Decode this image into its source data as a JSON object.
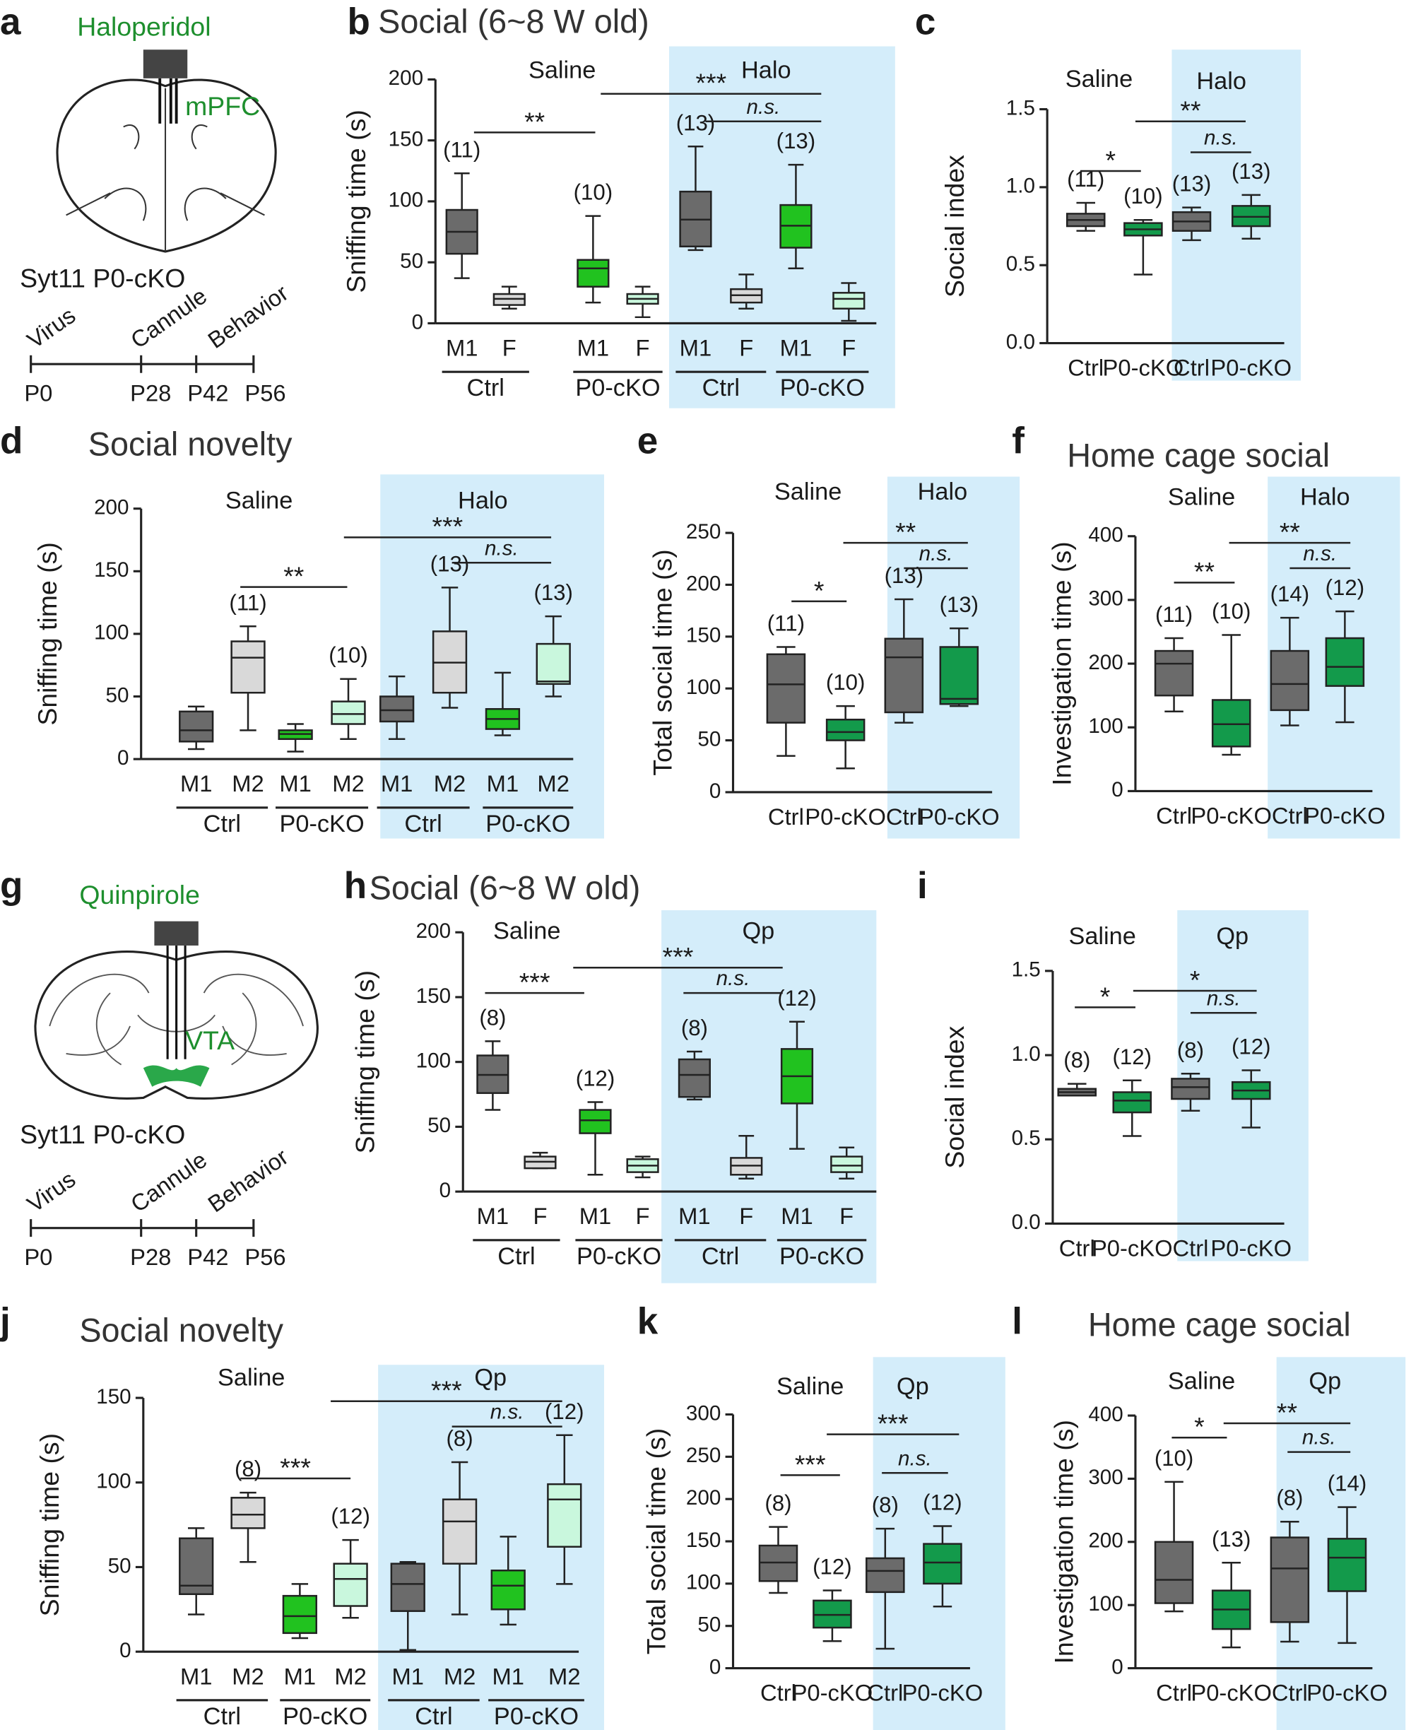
{
  "diagrams": [
    {
      "panel": "a",
      "drug": "Haloperidol",
      "region": "mPFC",
      "genotype": "Syt11 P0-cKO",
      "steps": [
        "Virus",
        "Cannule",
        "Behavior"
      ],
      "days": [
        "P0",
        "P28",
        "P42",
        "P56"
      ]
    },
    {
      "panel": "g",
      "drug": "Quinpirole",
      "region": "VTA",
      "genotype": "Syt11 P0-cKO",
      "steps": [
        "Virus",
        "Cannule",
        "Behavior"
      ],
      "days": [
        "P0",
        "P28",
        "P42",
        "P56"
      ]
    }
  ],
  "chart_data": [
    {
      "type": "box",
      "panel": "b",
      "title": "Social (6~8 W old)",
      "y_label": "Sniffing time (s)",
      "ylim": [
        0,
        200
      ],
      "yticks": [
        0,
        50,
        100,
        150,
        200
      ],
      "conditions": [
        "Saline",
        "Halo"
      ],
      "categories": [
        "M1",
        "F",
        "M1",
        "F",
        "M1",
        "F",
        "M1",
        "F"
      ],
      "groups": [
        "Ctrl",
        "P0-cKO",
        "Ctrl",
        "P0-cKO"
      ],
      "n_labels": [
        "(11)",
        null,
        "(10)",
        null,
        "(13)",
        null,
        "(13)",
        null
      ],
      "significance": [
        "**",
        "***",
        "n.s."
      ],
      "boxes": [
        {
          "min": 37,
          "q1": 57,
          "median": 75,
          "q3": 93,
          "max": 123,
          "color": "#6b6b6b"
        },
        {
          "min": 12,
          "q1": 15,
          "median": 20,
          "q3": 24,
          "max": 30,
          "color": "#d9d9d9"
        },
        {
          "min": 17,
          "q1": 30,
          "median": 45,
          "q3": 52,
          "max": 88,
          "color": "#21c21f"
        },
        {
          "min": 5,
          "q1": 16,
          "median": 20,
          "q3": 24,
          "max": 30,
          "color": "#c9f7dd"
        },
        {
          "min": 60,
          "q1": 63,
          "median": 85,
          "q3": 108,
          "max": 145,
          "color": "#6b6b6b"
        },
        {
          "min": 12,
          "q1": 17,
          "median": 23,
          "q3": 28,
          "max": 40,
          "color": "#d9d9d9"
        },
        {
          "min": 45,
          "q1": 62,
          "median": 80,
          "q3": 97,
          "max": 130,
          "color": "#21c21f"
        },
        {
          "min": 2,
          "q1": 12,
          "median": 20,
          "q3": 25,
          "max": 33,
          "color": "#c9f7dd"
        }
      ]
    },
    {
      "type": "box",
      "panel": "c",
      "y_label": "Social index",
      "ylim": [
        0,
        1.5
      ],
      "yticks": [
        {
          "value": 0,
          "label": "0.0"
        },
        0.5,
        {
          "value": 1,
          "label": "1.0"
        },
        1.5
      ],
      "conditions": [
        "Saline",
        "Halo"
      ],
      "categories": [
        "Ctrl",
        "P0-cKO",
        "Ctrl",
        "P0-cKO"
      ],
      "n_labels": [
        "(11)",
        "(10)",
        "(13)",
        "(13)"
      ],
      "significance": [
        "*",
        "**",
        "n.s."
      ],
      "boxes": [
        {
          "min": 0.72,
          "q1": 0.75,
          "median": 0.79,
          "q3": 0.83,
          "max": 0.9,
          "color": "#6b6b6b"
        },
        {
          "min": 0.44,
          "q1": 0.69,
          "median": 0.73,
          "q3": 0.77,
          "max": 0.79,
          "color": "#139a4b"
        },
        {
          "min": 0.66,
          "q1": 0.72,
          "median": 0.78,
          "q3": 0.84,
          "max": 0.87,
          "color": "#6b6b6b"
        },
        {
          "min": 0.67,
          "q1": 0.75,
          "median": 0.81,
          "q3": 0.88,
          "max": 0.95,
          "color": "#139a4b"
        }
      ]
    },
    {
      "type": "box",
      "panel": "d",
      "title": "Social novelty",
      "y_label": "Sniffing time (s)",
      "ylim": [
        0,
        200
      ],
      "yticks": [
        0,
        50,
        100,
        150,
        200
      ],
      "conditions": [
        "Saline",
        "Halo"
      ],
      "categories": [
        "M1",
        "M2",
        "M1",
        "M2",
        "M1",
        "M2",
        "M1",
        "M2"
      ],
      "groups": [
        "Ctrl",
        "P0-cKO",
        "Ctrl",
        "P0-cKO"
      ],
      "n_labels": [
        null,
        "(11)",
        null,
        "(10)",
        null,
        "(13)",
        null,
        "(13)"
      ],
      "significance": [
        "**",
        "***",
        "n.s."
      ],
      "boxes": [
        {
          "min": 8,
          "q1": 14,
          "median": 23,
          "q3": 38,
          "max": 42,
          "color": "#6b6b6b"
        },
        {
          "min": 23,
          "q1": 53,
          "median": 81,
          "q3": 94,
          "max": 106,
          "color": "#d9d9d9"
        },
        {
          "min": 6,
          "q1": 16,
          "median": 20,
          "q3": 23,
          "max": 28,
          "color": "#21c21f"
        },
        {
          "min": 16,
          "q1": 28,
          "median": 36,
          "q3": 46,
          "max": 64,
          "color": "#c9f7dd"
        },
        {
          "min": 16,
          "q1": 30,
          "median": 39,
          "q3": 50,
          "max": 66,
          "color": "#6b6b6b"
        },
        {
          "min": 41,
          "q1": 53,
          "median": 77,
          "q3": 102,
          "max": 137,
          "color": "#d9d9d9"
        },
        {
          "min": 19,
          "q1": 24,
          "median": 32,
          "q3": 40,
          "max": 69,
          "color": "#21c21f"
        },
        {
          "min": 50,
          "q1": 60,
          "median": 62,
          "q3": 92,
          "max": 114,
          "color": "#c9f7dd"
        }
      ]
    },
    {
      "type": "box",
      "panel": "e",
      "y_label": "Total social time (s)",
      "ylim": [
        0,
        250
      ],
      "yticks": [
        0,
        50,
        100,
        150,
        200,
        250
      ],
      "conditions": [
        "Saline",
        "Halo"
      ],
      "categories": [
        "Ctrl",
        "P0-cKO",
        "Ctrl",
        "P0-cKO"
      ],
      "n_labels": [
        "(11)",
        "(10)",
        "(13)",
        "(13)"
      ],
      "significance": [
        "*",
        "**",
        "n.s."
      ],
      "boxes": [
        {
          "min": 35,
          "q1": 67,
          "median": 104,
          "q3": 133,
          "max": 140,
          "color": "#6b6b6b"
        },
        {
          "min": 23,
          "q1": 50,
          "median": 58,
          "q3": 70,
          "max": 83,
          "color": "#139a4b"
        },
        {
          "min": 67,
          "q1": 77,
          "median": 130,
          "q3": 148,
          "max": 186,
          "color": "#6b6b6b"
        },
        {
          "min": 83,
          "q1": 85,
          "median": 90,
          "q3": 140,
          "max": 158,
          "color": "#139a4b"
        }
      ]
    },
    {
      "type": "box",
      "panel": "f",
      "title": "Home cage social",
      "y_label": "Investigation time (s)",
      "ylim": [
        0,
        400
      ],
      "yticks": [
        0,
        100,
        200,
        300,
        400
      ],
      "conditions": [
        "Saline",
        "Halo"
      ],
      "categories": [
        "Ctrl",
        "P0-cKO",
        "Ctrl",
        "P0-cKO"
      ],
      "n_labels": [
        "(11)",
        "(10)",
        "(14)",
        "(12)"
      ],
      "significance": [
        "**",
        "**",
        "n.s."
      ],
      "boxes": [
        {
          "min": 125,
          "q1": 150,
          "median": 200,
          "q3": 220,
          "max": 240,
          "color": "#6b6b6b"
        },
        {
          "min": 57,
          "q1": 70,
          "median": 105,
          "q3": 143,
          "max": 245,
          "color": "#139a4b"
        },
        {
          "min": 103,
          "q1": 127,
          "median": 168,
          "q3": 220,
          "max": 272,
          "color": "#6b6b6b"
        },
        {
          "min": 108,
          "q1": 165,
          "median": 195,
          "q3": 240,
          "max": 282,
          "color": "#139a4b"
        }
      ]
    },
    {
      "type": "box",
      "panel": "h",
      "title": "Social (6~8 W old)",
      "y_label": "Sniffing time (s)",
      "ylim": [
        0,
        200
      ],
      "yticks": [
        0,
        50,
        100,
        150,
        200
      ],
      "conditions": [
        "Saline",
        "Qp"
      ],
      "categories": [
        "M1",
        "F",
        "M1",
        "F",
        "M1",
        "F",
        "M1",
        "F"
      ],
      "groups": [
        "Ctrl",
        "P0-cKO",
        "Ctrl",
        "P0-cKO"
      ],
      "n_labels": [
        "(8)",
        null,
        "(12)",
        null,
        "(8)",
        null,
        "(12)",
        null
      ],
      "significance": [
        "***",
        "***",
        "n.s."
      ],
      "boxes": [
        {
          "min": 63,
          "q1": 76,
          "median": 90,
          "q3": 105,
          "max": 116,
          "color": "#6b6b6b"
        },
        {
          "min": 18,
          "q1": 18,
          "median": 23,
          "q3": 27,
          "max": 30,
          "color": "#d9d9d9"
        },
        {
          "min": 13,
          "q1": 45,
          "median": 55,
          "q3": 63,
          "max": 69,
          "color": "#21c21f"
        },
        {
          "min": 11,
          "q1": 15,
          "median": 20,
          "q3": 25,
          "max": 27,
          "color": "#c9f7dd"
        },
        {
          "min": 71,
          "q1": 73,
          "median": 90,
          "q3": 102,
          "max": 108,
          "color": "#6b6b6b"
        },
        {
          "min": 10,
          "q1": 13,
          "median": 20,
          "q3": 26,
          "max": 43,
          "color": "#d9d9d9"
        },
        {
          "min": 33,
          "q1": 68,
          "median": 89,
          "q3": 110,
          "max": 131,
          "color": "#21c21f"
        },
        {
          "min": 10,
          "q1": 15,
          "median": 20,
          "q3": 27,
          "max": 34,
          "color": "#c9f7dd"
        }
      ]
    },
    {
      "type": "box",
      "panel": "i",
      "y_label": "Social index",
      "ylim": [
        0,
        1.5
      ],
      "yticks": [
        {
          "value": 0,
          "label": "0.0"
        },
        0.5,
        {
          "value": 1,
          "label": "1.0"
        },
        1.5
      ],
      "conditions": [
        "Saline",
        "Qp"
      ],
      "categories": [
        "Ctrl",
        "P0-cKO",
        "Ctrl",
        "P0-cKO"
      ],
      "n_labels": [
        "(8)",
        "(12)",
        "(8)",
        "(12)"
      ],
      "significance": [
        "*",
        "*",
        "n.s."
      ],
      "boxes": [
        {
          "min": 0.76,
          "q1": 0.76,
          "median": 0.78,
          "q3": 0.8,
          "max": 0.83,
          "color": "#6b6b6b"
        },
        {
          "min": 0.52,
          "q1": 0.66,
          "median": 0.73,
          "q3": 0.78,
          "max": 0.85,
          "color": "#139a4b"
        },
        {
          "min": 0.67,
          "q1": 0.74,
          "median": 0.81,
          "q3": 0.86,
          "max": 0.89,
          "color": "#6b6b6b"
        },
        {
          "min": 0.57,
          "q1": 0.74,
          "median": 0.79,
          "q3": 0.84,
          "max": 0.91,
          "color": "#139a4b"
        }
      ]
    },
    {
      "type": "box",
      "panel": "j",
      "title": "Social novelty",
      "y_label": "Sniffing time (s)",
      "ylim": [
        0,
        150
      ],
      "yticks": [
        0,
        50,
        100,
        150
      ],
      "conditions": [
        "Saline",
        "Qp"
      ],
      "categories": [
        "M1",
        "M2",
        "M1",
        "M2",
        "M1",
        "M2",
        "M1",
        "M2"
      ],
      "groups": [
        "Ctrl",
        "P0-cKO",
        "Ctrl",
        "P0-cKO"
      ],
      "n_labels": [
        null,
        "(8)",
        null,
        "(12)",
        null,
        "(8)",
        null,
        "(12)"
      ],
      "significance": [
        "***",
        "***",
        "n.s."
      ],
      "boxes": [
        {
          "min": 22,
          "q1": 34,
          "median": 39,
          "q3": 67,
          "max": 73,
          "color": "#6b6b6b"
        },
        {
          "min": 53,
          "q1": 73,
          "median": 81,
          "q3": 91,
          "max": 94,
          "color": "#d9d9d9"
        },
        {
          "min": 8,
          "q1": 11,
          "median": 21,
          "q3": 33,
          "max": 40,
          "color": "#21c21f"
        },
        {
          "min": 20,
          "q1": 27,
          "median": 43,
          "q3": 52,
          "max": 66,
          "color": "#c9f7dd"
        },
        {
          "min": 1,
          "q1": 24,
          "median": 40,
          "q3": 52,
          "max": 53,
          "color": "#6b6b6b"
        },
        {
          "min": 22,
          "q1": 52,
          "median": 77,
          "q3": 90,
          "max": 112,
          "color": "#d9d9d9"
        },
        {
          "min": 16,
          "q1": 25,
          "median": 39,
          "q3": 48,
          "max": 68,
          "color": "#21c21f"
        },
        {
          "min": 40,
          "q1": 62,
          "median": 90,
          "q3": 99,
          "max": 128,
          "color": "#c9f7dd"
        }
      ]
    },
    {
      "type": "box",
      "panel": "k",
      "y_label": "Total social time (s)",
      "ylim": [
        0,
        300
      ],
      "yticks": [
        0,
        50,
        100,
        150,
        200,
        250,
        300
      ],
      "conditions": [
        "Saline",
        "Qp"
      ],
      "categories": [
        "Ctrl",
        "P0-cKO",
        "Ctrl",
        "P0-cKO"
      ],
      "n_labels": [
        "(8)",
        "(12)",
        "(8)",
        "(12)"
      ],
      "significance": [
        "***",
        "***",
        "n.s."
      ],
      "boxes": [
        {
          "min": 89,
          "q1": 103,
          "median": 125,
          "q3": 145,
          "max": 167,
          "color": "#6b6b6b"
        },
        {
          "min": 32,
          "q1": 48,
          "median": 63,
          "q3": 80,
          "max": 92,
          "color": "#139a4b"
        },
        {
          "min": 23,
          "q1": 90,
          "median": 115,
          "q3": 130,
          "max": 165,
          "color": "#6b6b6b"
        },
        {
          "min": 73,
          "q1": 100,
          "median": 125,
          "q3": 147,
          "max": 168,
          "color": "#139a4b"
        }
      ]
    },
    {
      "type": "box",
      "panel": "l",
      "title": "Home cage social",
      "y_label": "Investigation time (s)",
      "ylim": [
        0,
        400
      ],
      "yticks": [
        0,
        100,
        200,
        300,
        400
      ],
      "conditions": [
        "Saline",
        "Qp"
      ],
      "categories": [
        "Ctrl",
        "P0-cKO",
        "Ctrl",
        "P0-cKO"
      ],
      "n_labels": [
        "(10)",
        "(13)",
        "(8)",
        "(14)"
      ],
      "significance": [
        "*",
        "**",
        "n.s."
      ],
      "boxes": [
        {
          "min": 90,
          "q1": 103,
          "median": 140,
          "q3": 200,
          "max": 295,
          "color": "#6b6b6b"
        },
        {
          "min": 33,
          "q1": 62,
          "median": 93,
          "q3": 123,
          "max": 167,
          "color": "#139a4b"
        },
        {
          "min": 42,
          "q1": 73,
          "median": 158,
          "q3": 207,
          "max": 232,
          "color": "#6b6b6b"
        },
        {
          "min": 40,
          "q1": 122,
          "median": 175,
          "q3": 205,
          "max": 255,
          "color": "#139a4b"
        }
      ]
    }
  ]
}
